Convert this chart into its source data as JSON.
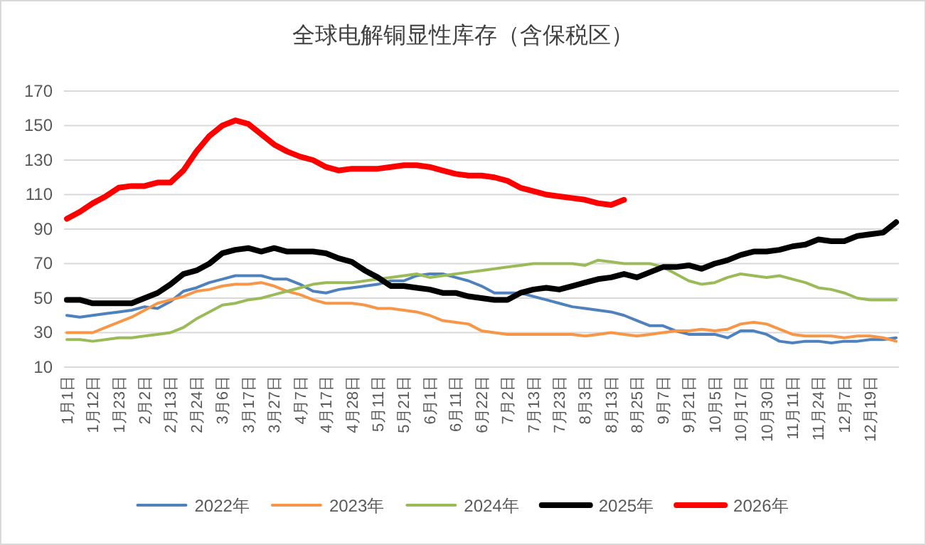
{
  "chart_data": {
    "type": "line",
    "title": "全球电解铜显性库存（含保税区）",
    "categories": [
      "1月1日",
      null,
      "1月12日",
      null,
      "1月23日",
      null,
      "2月2日",
      null,
      "2月13日",
      null,
      "2月24日",
      null,
      "3月6日",
      null,
      "3月17日",
      null,
      "3月27日",
      null,
      "4月7日",
      null,
      "4月17日",
      null,
      "4月28日",
      null,
      "5月11日",
      null,
      "5月21日",
      null,
      "6月1日",
      null,
      "6月11日",
      null,
      "6月22日",
      null,
      "7月2日",
      null,
      "7月13日",
      null,
      "7月23日",
      null,
      "8月3日",
      null,
      "8月13日",
      null,
      "8月25日",
      null,
      "9月7日",
      null,
      "9月21日",
      null,
      "10月5日",
      null,
      "10月17日",
      null,
      "10月30日",
      null,
      "11月11日",
      null,
      "11月24日",
      null,
      "12月7日",
      null,
      "12月19日",
      null,
      null
    ],
    "ylim": [
      10,
      170
    ],
    "yticks": [
      10,
      30,
      50,
      70,
      90,
      110,
      130,
      150,
      170
    ],
    "grid": "y",
    "legend": "bottom",
    "series": [
      {
        "name": "2022年",
        "color": "#4f81bd",
        "values": [
          40,
          39,
          40,
          41,
          42,
          43,
          45,
          44,
          48,
          54,
          56,
          59,
          61,
          63,
          63,
          63,
          61,
          61,
          58,
          54,
          53,
          55,
          56,
          57,
          58,
          60,
          60,
          63,
          64,
          64,
          62,
          60,
          57,
          53,
          53,
          53,
          51,
          49,
          47,
          45,
          44,
          43,
          42,
          40,
          37,
          34,
          34,
          31,
          29,
          29,
          29,
          27,
          31,
          31,
          29,
          25,
          24,
          25,
          25,
          24,
          25,
          25,
          26,
          26,
          27
        ]
      },
      {
        "name": "2023年",
        "color": "#f79646",
        "values": [
          30,
          30,
          30,
          33,
          36,
          39,
          43,
          47,
          49,
          51,
          54,
          55,
          57,
          58,
          58,
          59,
          57,
          54,
          52,
          49,
          47,
          47,
          47,
          46,
          44,
          44,
          43,
          42,
          40,
          37,
          36,
          35,
          31,
          30,
          29,
          29,
          29,
          29,
          29,
          29,
          28,
          29,
          30,
          29,
          28,
          29,
          30,
          31,
          31,
          32,
          31,
          32,
          35,
          36,
          35,
          32,
          29,
          28,
          28,
          28,
          27,
          28,
          28,
          27,
          25
        ]
      },
      {
        "name": "2024年",
        "color": "#9bbb59",
        "values": [
          26,
          26,
          25,
          26,
          27,
          27,
          28,
          29,
          30,
          33,
          38,
          42,
          46,
          47,
          49,
          50,
          52,
          54,
          56,
          58,
          59,
          59,
          59,
          60,
          61,
          62,
          63,
          64,
          62,
          63,
          64,
          65,
          66,
          67,
          68,
          69,
          70,
          70,
          70,
          70,
          69,
          72,
          71,
          70,
          70,
          70,
          68,
          64,
          60,
          58,
          59,
          62,
          64,
          63,
          62,
          63,
          61,
          59,
          56,
          55,
          53,
          50,
          49,
          49,
          49
        ]
      },
      {
        "name": "2025年",
        "color": "#000000",
        "values": [
          49,
          49,
          47,
          47,
          47,
          47,
          50,
          53,
          58,
          64,
          66,
          70,
          76,
          78,
          79,
          77,
          79,
          77,
          77,
          77,
          76,
          73,
          71,
          66,
          62,
          57,
          57,
          56,
          55,
          53,
          53,
          51,
          50,
          49,
          49,
          53,
          55,
          56,
          55,
          57,
          59,
          61,
          62,
          64,
          62,
          65,
          68,
          68,
          69,
          67,
          70,
          72,
          75,
          77,
          77,
          78,
          80,
          81,
          84,
          83,
          83,
          86,
          87,
          88,
          94
        ]
      },
      {
        "name": "2026年",
        "color": "#ff0000",
        "values": [
          96,
          100,
          105,
          109,
          114,
          115,
          115,
          117,
          117,
          124,
          135,
          144,
          150,
          153,
          151,
          145,
          139,
          135,
          132,
          130,
          126,
          124,
          125,
          125,
          125,
          126,
          127,
          127,
          126,
          124,
          122,
          121,
          121,
          120,
          118,
          114,
          112,
          110,
          109,
          108,
          107,
          105,
          104,
          107,
          null,
          null,
          null,
          null,
          null,
          null,
          null,
          null,
          null,
          null,
          null,
          null,
          null,
          null,
          null,
          null,
          null,
          null,
          null,
          null,
          null
        ]
      }
    ]
  }
}
